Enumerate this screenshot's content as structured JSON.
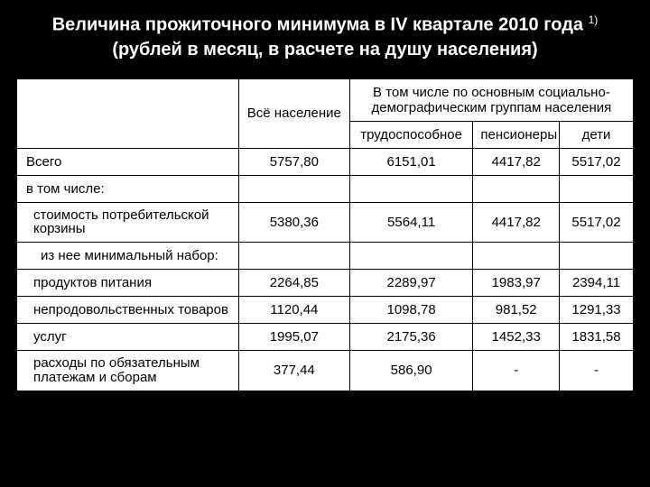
{
  "title_line1": "Величина прожиточного минимума в IV квартале 2010 года ",
  "title_sup": "1)",
  "title_line2": "(рублей в месяц, в расчете на душу населения)",
  "header": {
    "all_pop": "Всё население",
    "group_caption": "В том числе по основным социально-демографическим группам населения",
    "able": "трудоспособное",
    "pens": "пенсионеры",
    "kids": "дети"
  },
  "rows": [
    {
      "label": "Всего",
      "indent": 0,
      "vals": [
        "5757,80",
        "6151,01",
        "4417,82",
        "5517,02"
      ]
    },
    {
      "label": "в том числе:",
      "indent": 0,
      "vals": [
        "",
        "",
        "",
        ""
      ]
    },
    {
      "label": "стоимость потребительской корзины",
      "indent": 1,
      "tight": true,
      "vals": [
        "5380,36",
        "5564,11",
        "4417,82",
        "5517,02"
      ]
    },
    {
      "label": "из нее минимальный набор:",
      "indent": 2,
      "vals": [
        "",
        "",
        "",
        ""
      ]
    },
    {
      "label": "продуктов питания",
      "indent": 1,
      "vals": [
        "2264,85",
        "2289,97",
        "1983,97",
        "2394,11"
      ]
    },
    {
      "label": "непродовольственных товаров",
      "indent": 1,
      "tight": true,
      "vals": [
        "1120,44",
        "1098,78",
        "981,52",
        "1291,33"
      ]
    },
    {
      "label": "услуг",
      "indent": 1,
      "vals": [
        "1995,07",
        "2175,36",
        "1452,33",
        "1831,58"
      ]
    },
    {
      "label": "расходы по обязательным платежам и сборам",
      "indent": 1,
      "tight": true,
      "vals": [
        "377,44",
        "586,90",
        "-",
        "-"
      ]
    }
  ],
  "styling": {
    "background": "#000000",
    "table_bg": "#ffffff",
    "text_color_title": "#ffffff",
    "text_color_cell": "#000000",
    "border_color": "#000000",
    "title_fontsize": 20,
    "cell_fontsize": 15,
    "col_widths_pct": [
      36,
      18,
      20,
      14,
      12
    ],
    "slide_w": 720,
    "slide_h": 540
  }
}
